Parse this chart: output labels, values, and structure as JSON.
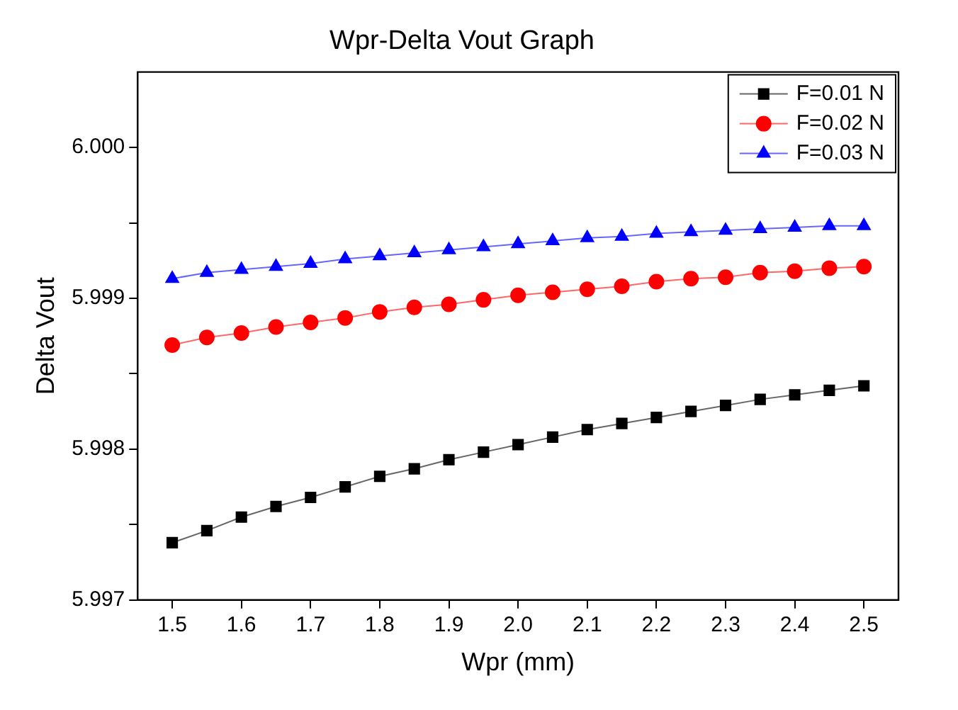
{
  "chart_data": {
    "type": "line",
    "title": "Wpr-Delta Vout Graph",
    "xlabel": "Wpr (mm)",
    "ylabel": "Delta Vout",
    "x": [
      1.5,
      1.55,
      1.6,
      1.65,
      1.7,
      1.75,
      1.8,
      1.85,
      1.9,
      1.95,
      2.0,
      2.05,
      2.1,
      2.15,
      2.2,
      2.25,
      2.3,
      2.35,
      2.4,
      2.45,
      2.5
    ],
    "series": [
      {
        "name": "F=0.01 N",
        "color": "#000000",
        "marker": "square",
        "values": [
          5.99738,
          5.99746,
          5.99755,
          5.99762,
          5.99768,
          5.99775,
          5.99782,
          5.99787,
          5.99793,
          5.99798,
          5.99803,
          5.99808,
          5.99813,
          5.99817,
          5.99821,
          5.99825,
          5.99829,
          5.99833,
          5.99836,
          5.99839,
          5.99842
        ]
      },
      {
        "name": "F=0.02 N",
        "color": "#ff0000",
        "marker": "circle",
        "values": [
          5.99869,
          5.99874,
          5.99877,
          5.99881,
          5.99884,
          5.99887,
          5.99891,
          5.99894,
          5.99896,
          5.99899,
          5.99902,
          5.99904,
          5.99906,
          5.99908,
          5.99911,
          5.99913,
          5.99914,
          5.99917,
          5.99918,
          5.9992,
          5.99921
        ]
      },
      {
        "name": "F=0.03 N",
        "color": "#0000ff",
        "marker": "triangle",
        "values": [
          5.99913,
          5.99917,
          5.99919,
          5.99921,
          5.99923,
          5.99926,
          5.99928,
          5.9993,
          5.99932,
          5.99934,
          5.99936,
          5.99938,
          5.9994,
          5.99941,
          5.99943,
          5.99944,
          5.99945,
          5.99946,
          5.99947,
          5.99948,
          5.99948
        ]
      }
    ],
    "xlim": [
      1.45,
      2.55
    ],
    "ylim": [
      5.997,
      6.0005
    ],
    "xticks": [
      1.5,
      1.6,
      1.7,
      1.8,
      1.9,
      {
        "value": 2,
        "label": "2.0"
      },
      2.1,
      2.2,
      2.3,
      2.4,
      2.5
    ],
    "yticks": [
      5.997,
      {
        "value": 5.9975,
        "label": null
      },
      5.998,
      {
        "value": 5.9985,
        "label": null
      },
      5.999,
      {
        "value": 5.9995,
        "label": null
      },
      {
        "value": 6,
        "label": "6.000"
      }
    ],
    "grid": false,
    "legend": "top right",
    "line_style": "solid"
  }
}
